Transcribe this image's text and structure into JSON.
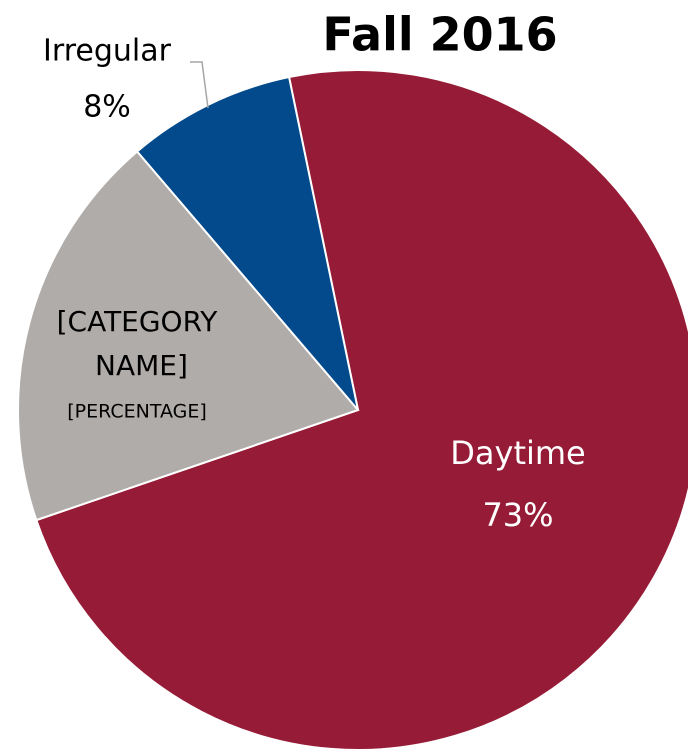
{
  "chart_data": {
    "type": "pie",
    "title": "Fall 2016",
    "categories": [
      "Daytime",
      "[CATEGORY NAME]",
      "Irregular"
    ],
    "values": [
      73,
      19,
      8
    ],
    "value_labels": [
      "73%",
      null,
      "8%"
    ],
    "colors": [
      "#961b36",
      "#b0acaa",
      "#034a8c"
    ],
    "annotations": [
      "[PERCENTAGE]"
    ]
  }
}
